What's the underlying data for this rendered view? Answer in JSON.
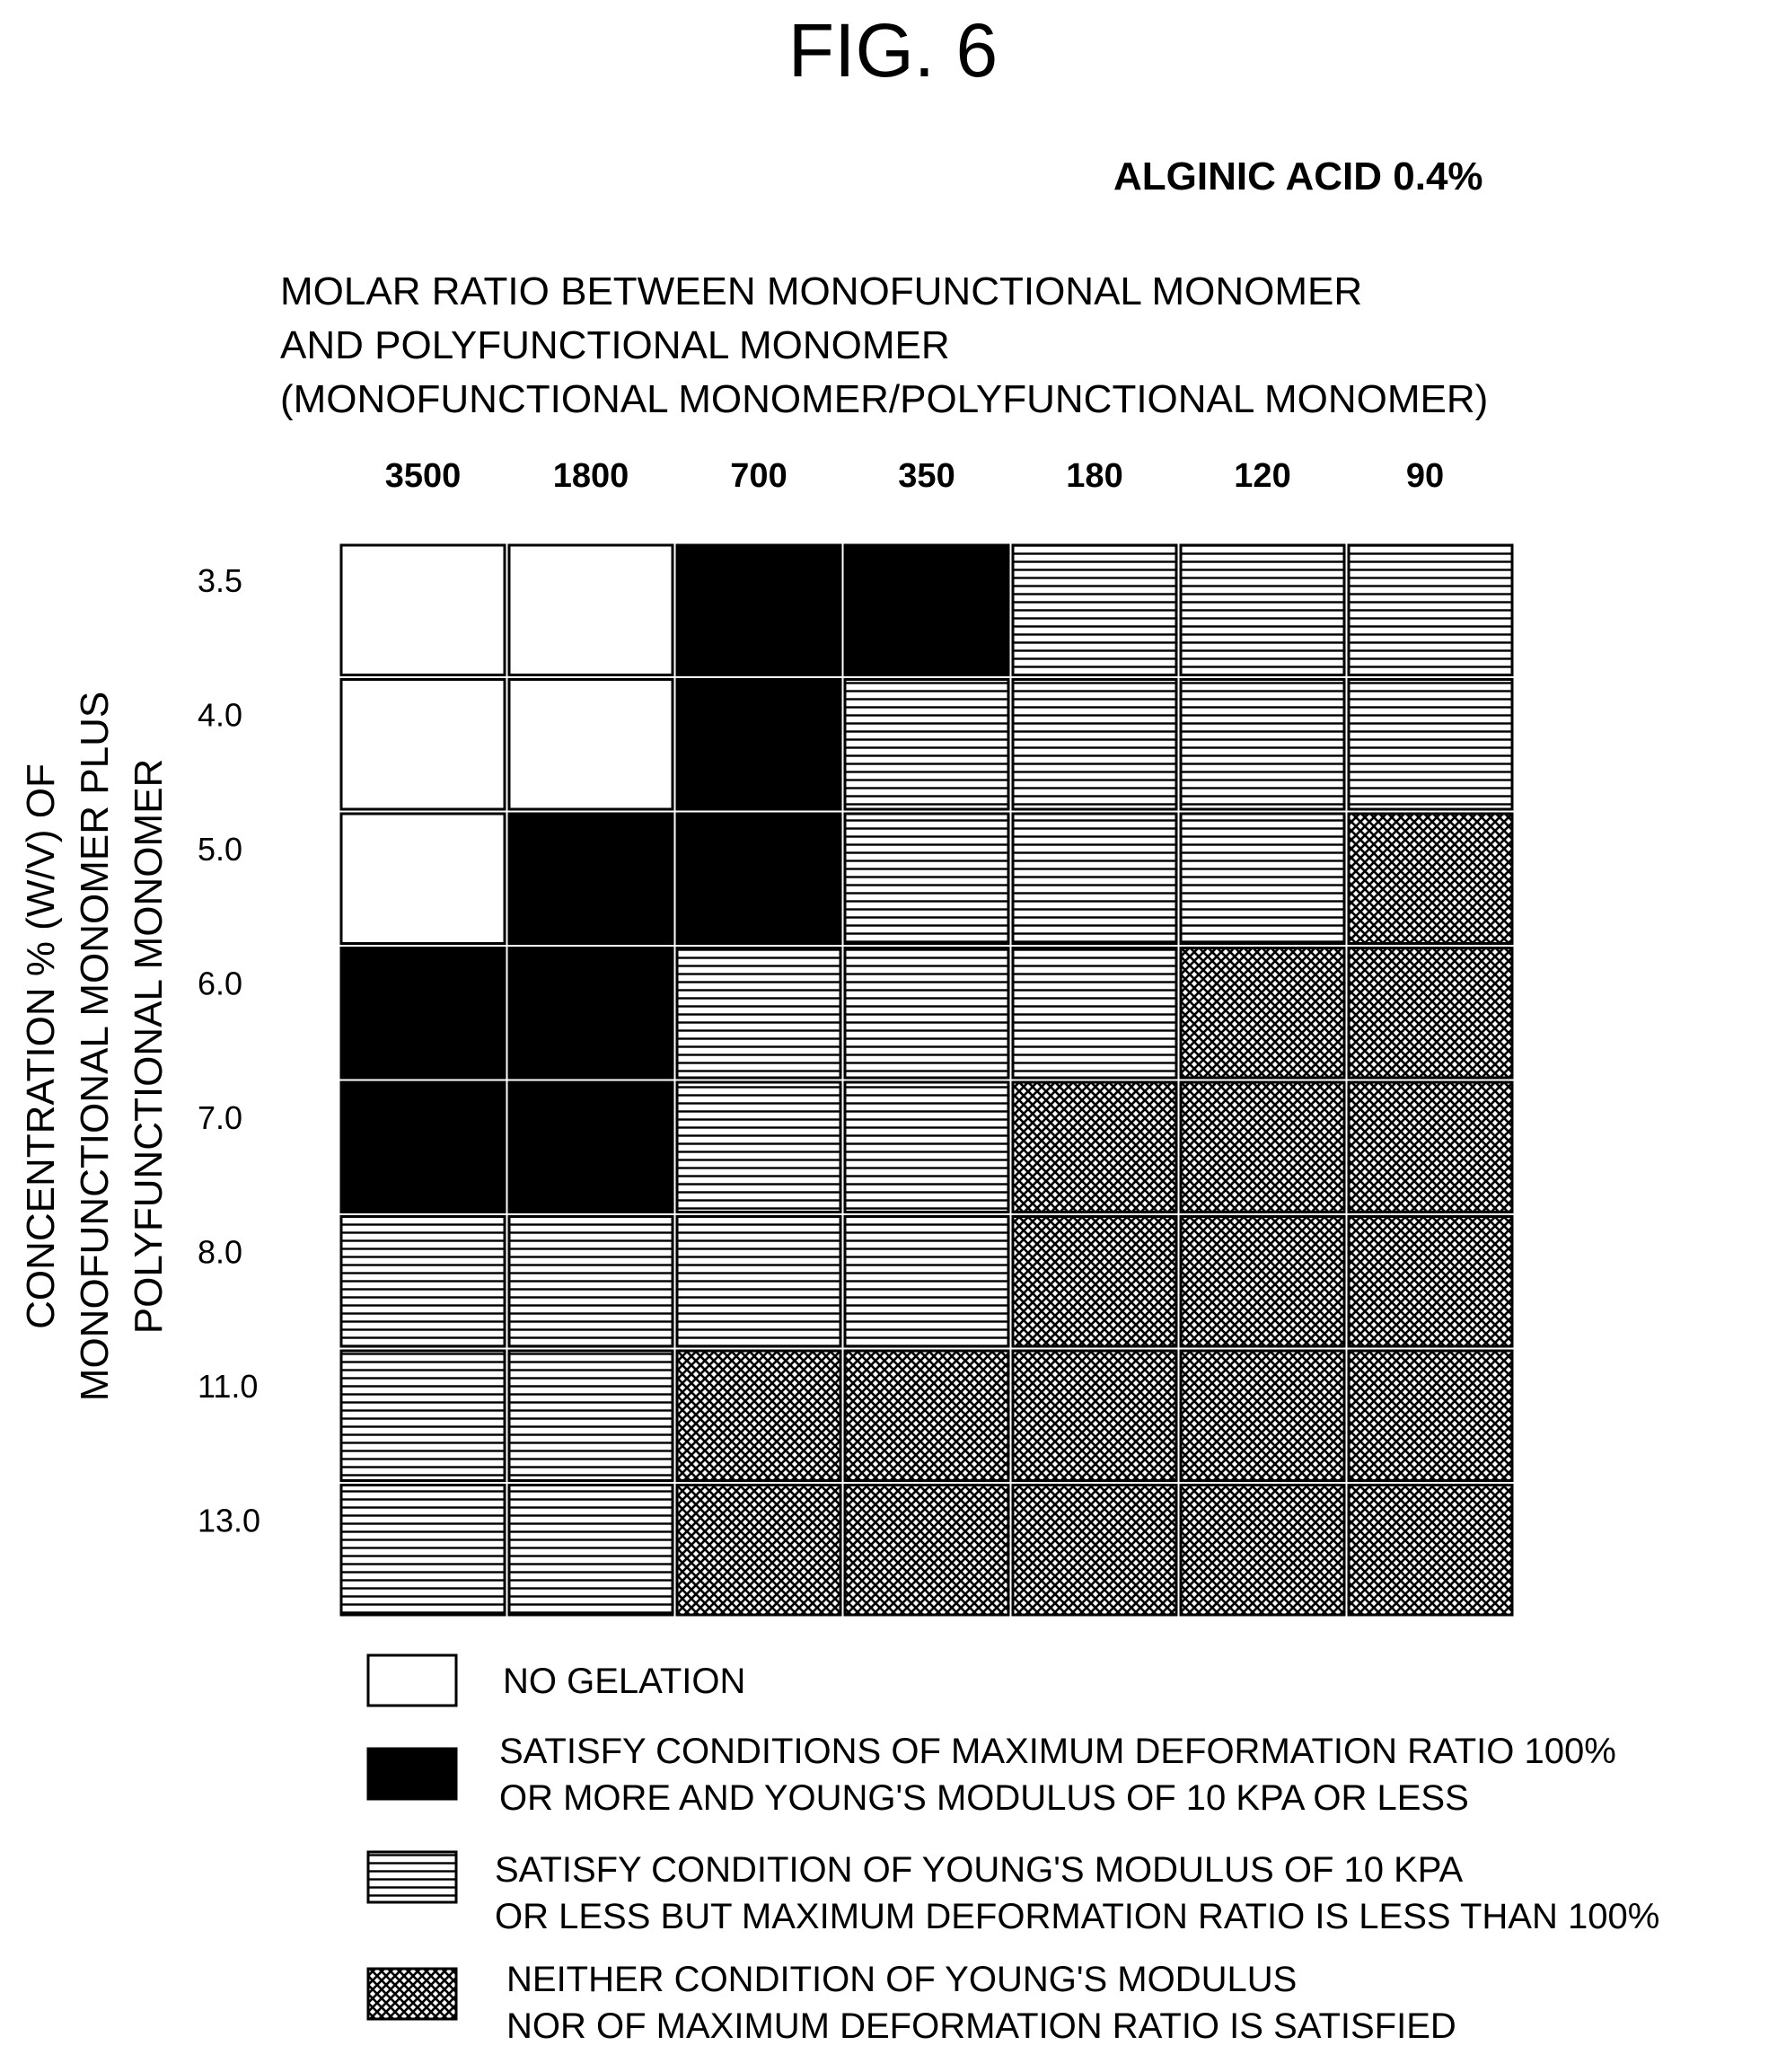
{
  "figure": {
    "title": "FIG. 6",
    "subtitle": "ALGINIC ACID 0.4%"
  },
  "colors": {
    "no_gelation": "#ffffff",
    "both_satisfied": "#000000",
    "hatch_line": "#000000",
    "border": "#000000"
  },
  "chart_data": {
    "type": "heatmap",
    "xlabel": [
      "MOLAR RATIO BETWEEN MONOFUNCTIONAL MONOMER",
      "AND POLYFUNCTIONAL MONOMER",
      "(MONOFUNCTIONAL MONOMER/POLYFUNCTIONAL MONOMER)"
    ],
    "ylabel": [
      "CONCENTRATION % (W/V) OF",
      "MONOFUNCTIONAL MONOMER PLUS",
      "POLYFUNCTIONAL MONOMER"
    ],
    "x_categories": [
      "3500",
      "1800",
      "700",
      "350",
      "180",
      "120",
      "90"
    ],
    "y_categories": [
      "3.5",
      "4.0",
      "5.0",
      "6.0",
      "7.0",
      "8.0",
      "11.0",
      "13.0"
    ],
    "cells": [
      [
        "none",
        "none",
        "both",
        "both",
        "young",
        "young",
        "young"
      ],
      [
        "none",
        "none",
        "both",
        "young",
        "young",
        "young",
        "young"
      ],
      [
        "none",
        "both",
        "both",
        "young",
        "young",
        "young",
        "neither"
      ],
      [
        "both",
        "both",
        "young",
        "young",
        "young",
        "neither",
        "neither"
      ],
      [
        "both",
        "both",
        "young",
        "young",
        "neither",
        "neither",
        "neither"
      ],
      [
        "young",
        "young",
        "young",
        "young",
        "neither",
        "neither",
        "neither"
      ],
      [
        "young",
        "young",
        "neither",
        "neither",
        "neither",
        "neither",
        "neither"
      ],
      [
        "young",
        "young",
        "neither",
        "neither",
        "neither",
        "neither",
        "neither"
      ]
    ],
    "legend": [
      {
        "key": "none",
        "lines": [
          "NO GELATION"
        ]
      },
      {
        "key": "both",
        "lines": [
          "SATISFY CONDITIONS OF MAXIMUM DEFORMATION RATIO 100%",
          "OR MORE AND YOUNG'S MODULUS OF 10 KPA OR LESS"
        ]
      },
      {
        "key": "young",
        "lines": [
          "SATISFY CONDITION OF YOUNG'S MODULUS OF 10 KPA",
          "OR LESS BUT MAXIMUM DEFORMATION RATIO IS LESS THAN 100%"
        ]
      },
      {
        "key": "neither",
        "lines": [
          "NEITHER CONDITION OF YOUNG'S MODULUS",
          "NOR OF MAXIMUM DEFORMATION RATIO IS SATISFIED"
        ]
      }
    ],
    "legend_placement": "bottom"
  }
}
